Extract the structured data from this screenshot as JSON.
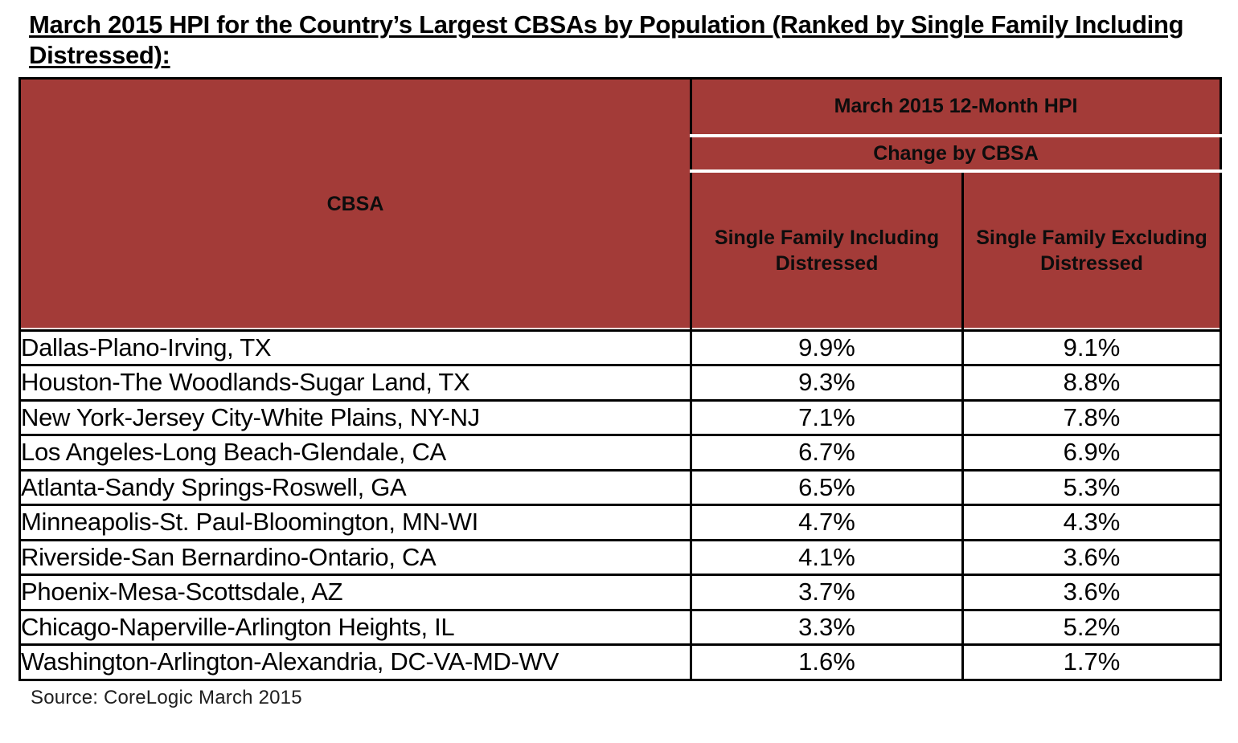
{
  "title": "March 2015 HPI for the Country’s Largest CBSAs by Population (Ranked by Single Family Including Distressed):",
  "table": {
    "cbsa_header": "CBSA",
    "group_header": "March 2015 12-Month HPI",
    "subgroup_header": "Change by CBSA",
    "col_including_header": "Single Family Including Distressed",
    "col_excluding_header": "Single Family Excluding Distressed",
    "rows": [
      {
        "cbsa": "Dallas-Plano-Irving, TX",
        "including": "9.9%",
        "excluding": "9.1%"
      },
      {
        "cbsa": "Houston-The Woodlands-Sugar Land, TX",
        "including": "9.3%",
        "excluding": "8.8%"
      },
      {
        "cbsa": "New York-Jersey City-White Plains, NY-NJ",
        "including": "7.1%",
        "excluding": "7.8%"
      },
      {
        "cbsa": "Los Angeles-Long Beach-Glendale, CA",
        "including": "6.7%",
        "excluding": "6.9%"
      },
      {
        "cbsa": "Atlanta-Sandy Springs-Roswell, GA",
        "including": "6.5%",
        "excluding": "5.3%"
      },
      {
        "cbsa": "Minneapolis-St. Paul-Bloomington, MN-WI",
        "including": "4.7%",
        "excluding": "4.3%"
      },
      {
        "cbsa": "Riverside-San Bernardino-Ontario, CA",
        "including": "4.1%",
        "excluding": "3.6%"
      },
      {
        "cbsa": "Phoenix-Mesa-Scottsdale, AZ",
        "including": "3.7%",
        "excluding": "3.6%"
      },
      {
        "cbsa": "Chicago-Naperville-Arlington Heights, IL",
        "including": "3.3%",
        "excluding": "5.2%"
      },
      {
        "cbsa": "Washington-Arlington-Alexandria, DC-VA-MD-WV",
        "including": "1.6%",
        "excluding": "1.7%"
      }
    ]
  },
  "source": "Source: CoreLogic March 2015",
  "colors": {
    "header_red": "#a33b38",
    "border_black": "#000000",
    "row_white": "#ffffff",
    "text_black": "#000000"
  }
}
